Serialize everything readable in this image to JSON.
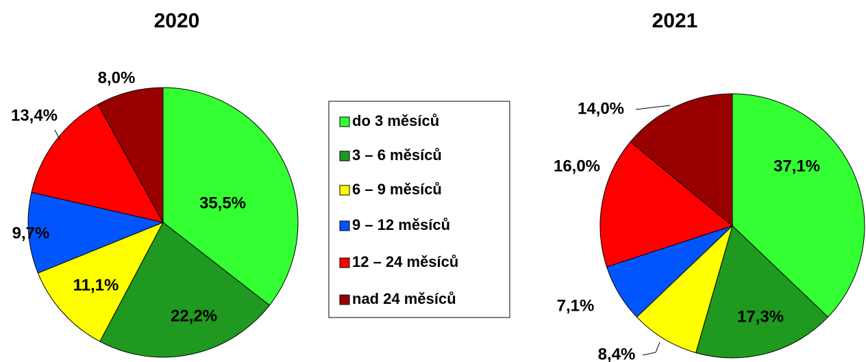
{
  "legend": {
    "labels": [
      "do 3 měsíců",
      "3 – 6 měsíců",
      "6 – 9 měsíců",
      "9 – 12 měsíců",
      "12 – 24 měsíců",
      "nad 24 měsíců"
    ],
    "colors": [
      "#33ff33",
      "#1f991f",
      "#ffff00",
      "#0055ff",
      "#ff0000",
      "#990000"
    ]
  },
  "chart_data": [
    {
      "type": "pie",
      "title": "2020",
      "values": [
        35.5,
        22.2,
        11.1,
        9.7,
        13.4,
        8.0
      ],
      "value_labels": [
        "35,5%",
        "22,2%",
        "11,1%",
        "9,7%",
        "13,4%",
        "8,0%"
      ]
    },
    {
      "type": "pie",
      "title": "2021",
      "values": [
        37.1,
        17.3,
        8.4,
        7.1,
        16.0,
        14.0
      ],
      "value_labels": [
        "37,1%",
        "17,3%",
        "8,4%",
        "7,1%",
        "16,0%",
        "14,0%"
      ]
    }
  ]
}
